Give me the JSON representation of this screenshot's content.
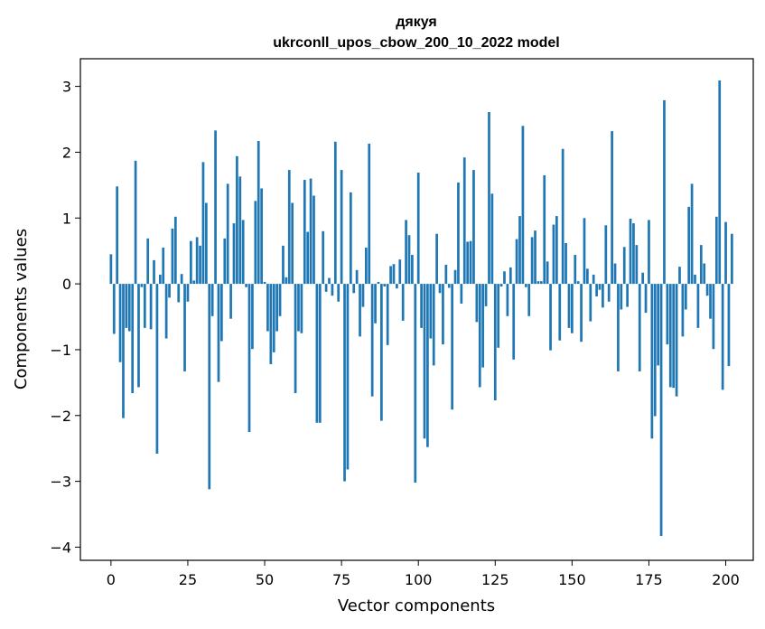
{
  "chart_data": {
    "type": "bar",
    "title": "дякуя",
    "subtitle": "ukrconll_upos_cbow_200_10_2022 model",
    "xlabel": "Vector components",
    "ylabel": "Components values",
    "xlim": [
      -9.95,
      208.95
    ],
    "ylim": [
      -4.2,
      3.42
    ],
    "xticks": [
      0,
      25,
      50,
      75,
      100,
      125,
      150,
      175,
      200
    ],
    "yticks": [
      -4,
      -3,
      -2,
      -1,
      0,
      1,
      2,
      3
    ],
    "ytick_labels": [
      "−4",
      "−3",
      "−2",
      "−1",
      "0",
      "1",
      "2",
      "3"
    ],
    "bar_color": "#1f77b4",
    "grid": false,
    "values": [
      0.45,
      -0.76,
      1.48,
      -1.19,
      -2.04,
      -0.67,
      -0.72,
      -1.66,
      1.87,
      -1.57,
      -0.05,
      -0.67,
      0.69,
      -0.69,
      0.36,
      -2.58,
      0.14,
      0.55,
      -0.83,
      -0.21,
      0.84,
      1.02,
      -0.28,
      0.15,
      -1.33,
      -0.27,
      0.65,
      0.05,
      0.71,
      0.58,
      1.85,
      1.23,
      -3.12,
      -0.49,
      2.33,
      -1.49,
      -0.87,
      0.69,
      1.52,
      -0.53,
      0.92,
      1.94,
      1.63,
      0.97,
      -0.05,
      -2.25,
      -0.99,
      1.26,
      2.17,
      1.45,
      0.03,
      -0.72,
      -1.22,
      -1.04,
      -0.72,
      -0.49,
      0.58,
      0.1,
      1.73,
      1.23,
      -1.66,
      -0.72,
      -0.75,
      1.58,
      0.79,
      1.6,
      1.34,
      -2.11,
      -2.11,
      0.8,
      -0.12,
      0.09,
      -0.18,
      2.16,
      -0.27,
      1.73,
      -3.0,
      -2.82,
      1.39,
      -0.14,
      0.21,
      -0.8,
      -0.35,
      0.55,
      2.13,
      -1.71,
      -0.6,
      0.03,
      -2.08,
      -0.04,
      -0.93,
      0.27,
      0.3,
      -0.07,
      0.37,
      -0.56,
      0.97,
      0.74,
      0.44,
      -3.02,
      1.69,
      -0.67,
      -2.35,
      -2.48,
      -0.83,
      -1.24,
      0.76,
      -0.14,
      -0.92,
      0.29,
      -0.06,
      -1.91,
      0.21,
      1.54,
      -0.3,
      1.92,
      0.64,
      0.65,
      1.73,
      -0.58,
      -1.57,
      -1.27,
      -0.34,
      2.61,
      1.37,
      -1.77,
      -0.97,
      -0.04,
      0.19,
      -0.49,
      0.25,
      -1.15,
      0.68,
      1.03,
      2.4,
      -0.05,
      -0.49,
      0.71,
      0.81,
      0.04,
      0.04,
      1.65,
      0.34,
      -1.01,
      0.9,
      1.03,
      -0.86,
      2.05,
      0.62,
      -0.67,
      -0.75,
      0.44,
      0.04,
      -0.88,
      1.0,
      0.23,
      -0.57,
      0.14,
      -0.19,
      -0.09,
      -0.36,
      0.89,
      -0.27,
      2.32,
      0.31,
      -1.33,
      -0.39,
      0.56,
      -0.35,
      0.99,
      0.92,
      0.59,
      -1.33,
      0.17,
      -0.44,
      0.97,
      -2.35,
      -2.01,
      -1.24,
      -3.83,
      2.79,
      -0.92,
      -1.57,
      -1.58,
      -1.71,
      0.26,
      -0.8,
      -0.39,
      1.17,
      1.52,
      0.14,
      -0.67,
      0.59,
      0.31,
      -0.18,
      -0.53,
      -0.99,
      1.02,
      3.09,
      -1.61,
      0.94,
      -1.25,
      0.76
    ]
  }
}
